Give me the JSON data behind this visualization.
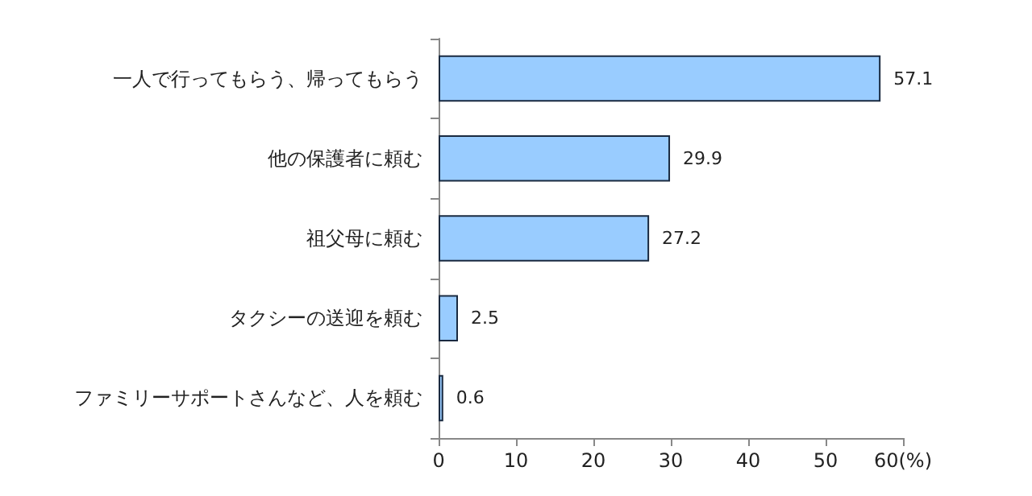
{
  "chart_data": {
    "type": "bar",
    "orientation": "horizontal",
    "categories": [
      "一人で行ってもらう、帰ってもらう",
      "他の保護者に頼む",
      "祖父母に頼む",
      "タクシーの送迎を頼む",
      "ファミリーサポートさんなど、人を頼む"
    ],
    "values": [
      57.1,
      29.9,
      27.2,
      2.5,
      0.6
    ],
    "color": "#99ccff",
    "data_labels": true,
    "xlim": [
      0,
      60
    ],
    "xticks": [
      0,
      10,
      20,
      30,
      40,
      50,
      {
        "value": 60,
        "label": "60(%)"
      }
    ],
    "grid": false
  }
}
